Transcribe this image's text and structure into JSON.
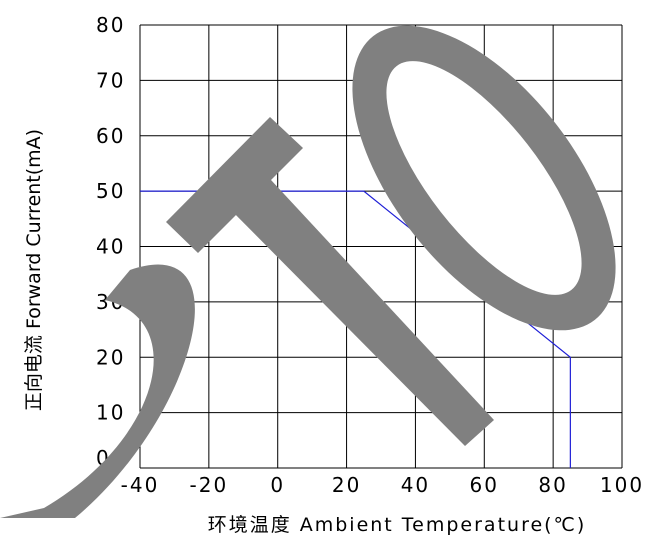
{
  "chart_data": {
    "type": "line",
    "title": "",
    "xlabel": "环境温度  Ambient Temperature(℃)",
    "ylabel": "正向电流 Forward Current(mA)",
    "xlim": [
      -40,
      100
    ],
    "ylim": [
      0,
      80
    ],
    "x_ticks": [
      -40,
      -20,
      0,
      20,
      40,
      60,
      80,
      100
    ],
    "y_ticks": [
      0,
      10,
      20,
      30,
      40,
      50,
      60,
      70,
      80
    ],
    "x_grid": [
      -40,
      -20,
      0,
      20,
      40,
      60,
      80,
      100
    ],
    "y_grid": [
      0,
      10,
      20,
      30,
      40,
      50,
      60,
      70,
      80
    ],
    "grid": true,
    "legend": "none",
    "series": [
      {
        "color": "#1f1fd6",
        "x": [
          -40,
          25,
          85,
          85
        ],
        "y": [
          50,
          50,
          20,
          0
        ]
      }
    ],
    "watermark": {
      "text": "DTO",
      "color": "#808080"
    }
  }
}
